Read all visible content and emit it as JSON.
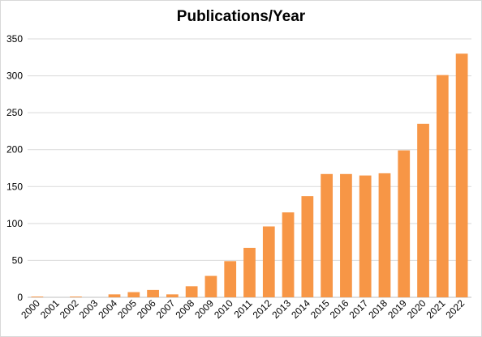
{
  "chart_data": {
    "type": "bar",
    "title": "Publications/Year",
    "xlabel": "",
    "ylabel": "",
    "categories": [
      "2000",
      "2001",
      "2002",
      "2003",
      "2004",
      "2005",
      "2006",
      "2007",
      "2008",
      "2009",
      "2010",
      "2011",
      "2012",
      "2013",
      "2014",
      "2015",
      "2016",
      "2017",
      "2018",
      "2019",
      "2020",
      "2021",
      "2022"
    ],
    "values": [
      1,
      0,
      1,
      0,
      4,
      7,
      10,
      4,
      15,
      29,
      49,
      67,
      96,
      115,
      137,
      167,
      167,
      165,
      168,
      199,
      235,
      301,
      330
    ],
    "ylim": [
      0,
      350
    ],
    "yticks": [
      0,
      50,
      100,
      150,
      200,
      250,
      300,
      350
    ],
    "grid": true,
    "legend": "none",
    "bar_color": "#F79646",
    "grid_color": "#d9d9d9"
  }
}
